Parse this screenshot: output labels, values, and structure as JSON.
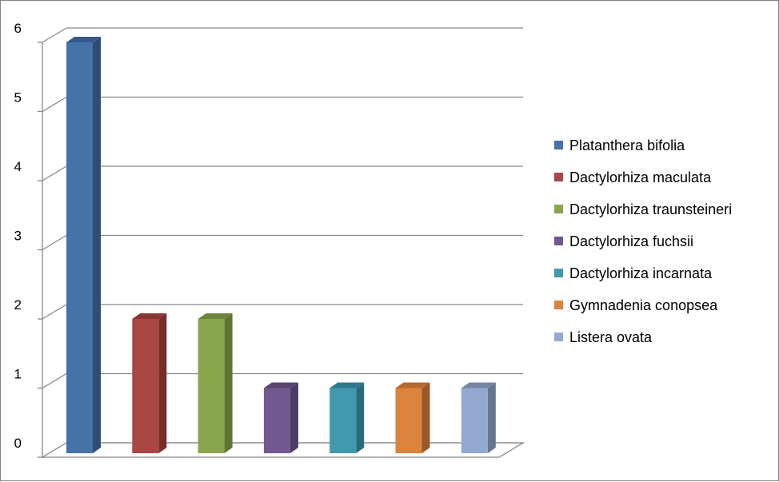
{
  "chart_data": {
    "type": "bar",
    "style": "3d-column",
    "title": "",
    "xlabel": "",
    "ylabel": "",
    "ylim": [
      0,
      6
    ],
    "yticks": [
      "0",
      "1",
      "2",
      "3",
      "4",
      "5",
      "6"
    ],
    "grid": true,
    "legend_position": "right",
    "categories": [
      "Platanthera bifolia",
      "Dactylorhiza maculata",
      "Dactylorhiza traunsteineri",
      "Dactylorhiza fuchsii",
      "Dactylorhiza incarnata",
      "Gymnadenia conopsea",
      "Listera ovata"
    ],
    "values": [
      6,
      2,
      2,
      1,
      1,
      1,
      1
    ],
    "colors": [
      "#4572A7",
      "#AA4643",
      "#89A54E",
      "#71588F",
      "#4198AF",
      "#DB843D",
      "#93A9CF"
    ],
    "side_colors": [
      "#2E4E78",
      "#772E2C",
      "#5E7434",
      "#4D3C63",
      "#2B6A79",
      "#9A5A28",
      "#66768F"
    ],
    "top_colors": [
      "#35598A",
      "#8A3533",
      "#6C843C",
      "#584470",
      "#307A8D",
      "#B46930",
      "#7486A6"
    ]
  }
}
